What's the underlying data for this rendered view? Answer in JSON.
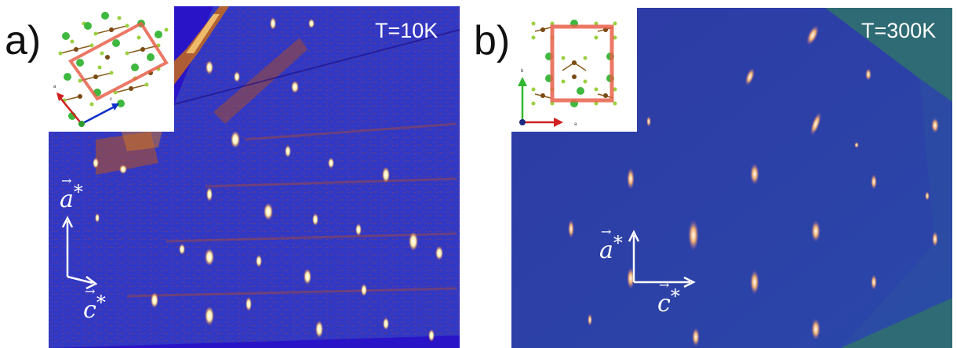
{
  "panel_a": {
    "label": "a)",
    "temperature": "T=10K",
    "axis_vertical": "a",
    "axis_horizontal": "c",
    "inset_axes": [
      "a",
      "c"
    ],
    "colors": {
      "background": "#2f1ec8",
      "mid": "#3a40c0",
      "hot": "#c2451a",
      "peak": "#fff6d0"
    }
  },
  "panel_b": {
    "label": "b)",
    "temperature": "T=300K",
    "axis_vertical": "a",
    "axis_horizontal": "c",
    "inset_axes": [
      "b",
      "a"
    ],
    "colors": {
      "background": "#2c3fa8",
      "mid": "#3552b0",
      "edge": "#2f6b70",
      "peak": "#ffffff"
    }
  }
}
